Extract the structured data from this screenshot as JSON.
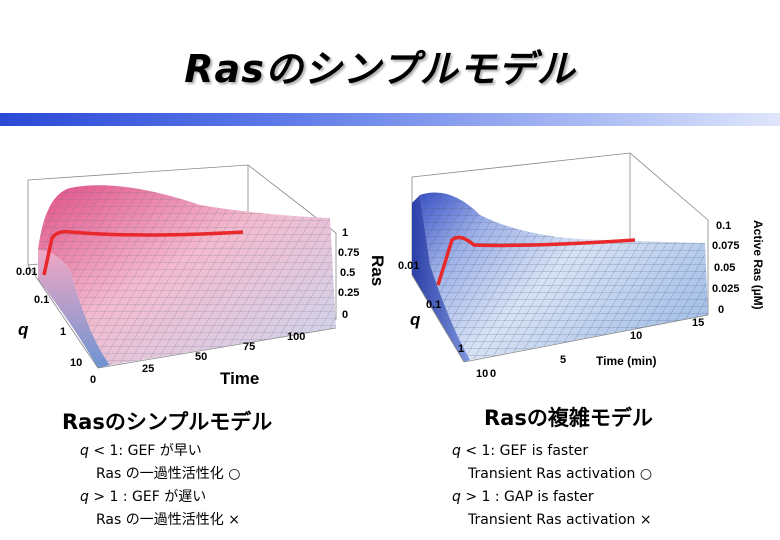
{
  "slide": {
    "title": "Rasのシンプルモデル"
  },
  "left_panel": {
    "caption": "Rasのシンプルモデル",
    "plot": {
      "z_ticks": [
        "1",
        "0.75",
        "0.5",
        "0.25",
        "0"
      ],
      "z_label": "Ras",
      "q_ticks": [
        "0.01",
        "0.1",
        "1",
        "10"
      ],
      "q_label": "q",
      "time_ticks": [
        "0",
        "25",
        "50",
        "75",
        "100"
      ],
      "time_label": "Time"
    },
    "bullets": [
      {
        "q": "q",
        "rest": " < 1:  GEF が早い"
      },
      {
        "text": "Ras の一過性活性化 ○"
      },
      {
        "q": "q",
        "rest": " > 1 :  GEF が遅い"
      },
      {
        "text": "Ras の一過性活性化 ×"
      }
    ]
  },
  "right_panel": {
    "caption": "Rasの複雑モデル",
    "plot": {
      "z_ticks": [
        "0.1",
        "0.075",
        "0.05",
        "0.025",
        "0"
      ],
      "z_label": "Active Ras (µM)",
      "q_ticks": [
        "0.01",
        "0.1",
        "1",
        "10"
      ],
      "q_label": "q",
      "time_ticks": [
        "0",
        "5",
        "10",
        "15"
      ],
      "time_label": "Time (min)"
    },
    "bullets": [
      {
        "q": "q",
        "rest": " < 1:  GEF is faster"
      },
      {
        "text": "Transient  Ras activation ○"
      },
      {
        "q": "q",
        "rest": " > 1 :  GAP is faster"
      },
      {
        "text": "Transient Ras activation ×"
      }
    ]
  },
  "colors": {
    "title_bar_start": "#2a49d6",
    "title_bar_end": "#dfe6fc",
    "left_surface_high": "#e0457f",
    "right_surface_high": "#3a52c8",
    "trace_line": "#e8282a"
  }
}
